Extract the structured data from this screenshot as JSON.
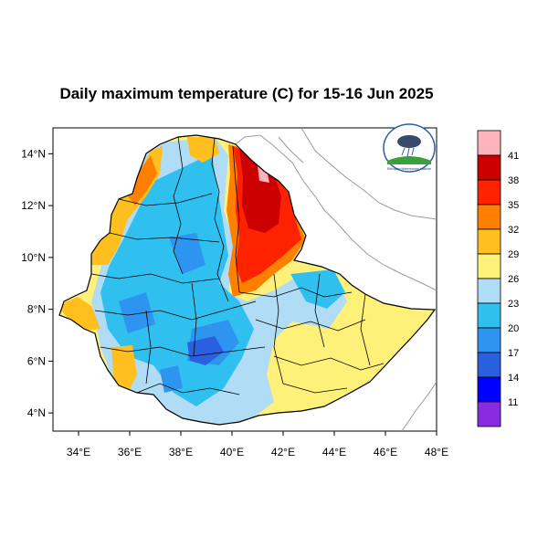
{
  "title": "Daily maximum temperature (C) for 15-16 Jun 2025",
  "map": {
    "lon_range": [
      33,
      48
    ],
    "lat_range": [
      3.3,
      15
    ],
    "lon_ticks": [
      "34°E",
      "36°E",
      "38°E",
      "40°E",
      "42°E",
      "44°E",
      "46°E",
      "48°E"
    ],
    "lat_ticks": [
      "4°N",
      "6°N",
      "8°N",
      "10°N",
      "12°N",
      "14°N"
    ],
    "ocean_color": "#ffffff",
    "border_color": "#000000"
  },
  "legend": {
    "levels": [
      "41",
      "38",
      "35",
      "32",
      "29",
      "26",
      "23",
      "20",
      "17",
      "14",
      "11"
    ],
    "colors": [
      "#ffb3bd",
      "#cc0000",
      "#ff2200",
      "#ff7f00",
      "#ffbf1f",
      "#fff07a",
      "#b0dcf5",
      "#30c0f0",
      "#2d95f0",
      "#2a5fe0",
      "#0000ff",
      "#8a2be2"
    ]
  },
  "logo": {
    "name": "ethiopian-meteorology-institute-logo",
    "text": "Ethiopian Meteorology Institute"
  }
}
